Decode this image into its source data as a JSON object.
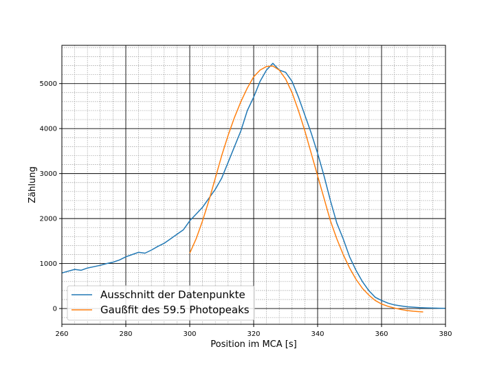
{
  "chart_data": {
    "type": "line",
    "title": "",
    "xlabel": "Position im MCA [s]",
    "ylabel": "Zählung",
    "xlim": [
      260,
      380
    ],
    "ylim": [
      -350,
      5850
    ],
    "xticks": [
      260,
      280,
      300,
      320,
      340,
      360,
      380
    ],
    "yticks": [
      0,
      1000,
      2000,
      3000,
      4000,
      5000
    ],
    "grid": {
      "major": true,
      "minor": true
    },
    "legend": {
      "placement": "lower-left"
    },
    "series": [
      {
        "name": "Ausschnitt der Datenpunkte",
        "color": "#1f77b4",
        "x": [
          260,
          262,
          264,
          266,
          268,
          270,
          272,
          274,
          276,
          278,
          280,
          282,
          284,
          286,
          288,
          290,
          292,
          294,
          296,
          298,
          300,
          302,
          304,
          306,
          308,
          310,
          312,
          314,
          316,
          318,
          320,
          322,
          324,
          326,
          328,
          330,
          332,
          334,
          336,
          338,
          340,
          342,
          344,
          346,
          348,
          350,
          352,
          354,
          356,
          358,
          360,
          362,
          364,
          366,
          368,
          370,
          372,
          374,
          376,
          378,
          380
        ],
        "y": [
          790,
          830,
          870,
          850,
          900,
          930,
          960,
          1000,
          1030,
          1080,
          1150,
          1200,
          1250,
          1230,
          1300,
          1380,
          1450,
          1550,
          1650,
          1750,
          1950,
          2100,
          2250,
          2450,
          2650,
          2900,
          3250,
          3600,
          3950,
          4400,
          4700,
          5050,
          5300,
          5450,
          5300,
          5250,
          5050,
          4700,
          4300,
          3900,
          3450,
          2950,
          2400,
          1900,
          1550,
          1150,
          850,
          600,
          400,
          250,
          180,
          120,
          80,
          60,
          40,
          30,
          20,
          15,
          10,
          8,
          5
        ]
      },
      {
        "name": "Gaußfit des 59.5 Photopeaks",
        "color": "#ff7f0e",
        "x": [
          300,
          302,
          304,
          306,
          308,
          310,
          312,
          314,
          316,
          318,
          320,
          322,
          324,
          326,
          328,
          330,
          332,
          334,
          336,
          338,
          340,
          342,
          344,
          346,
          348,
          350,
          352,
          354,
          356,
          358,
          360,
          362,
          364,
          366,
          368,
          370,
          372,
          373
        ],
        "y": [
          1230,
          1550,
          1950,
          2400,
          2900,
          3400,
          3850,
          4250,
          4600,
          4900,
          5150,
          5300,
          5380,
          5390,
          5300,
          5100,
          4800,
          4400,
          3950,
          3450,
          2950,
          2450,
          1950,
          1550,
          1200,
          900,
          650,
          450,
          300,
          180,
          100,
          50,
          10,
          -20,
          -45,
          -60,
          -70,
          -75
        ]
      }
    ]
  }
}
